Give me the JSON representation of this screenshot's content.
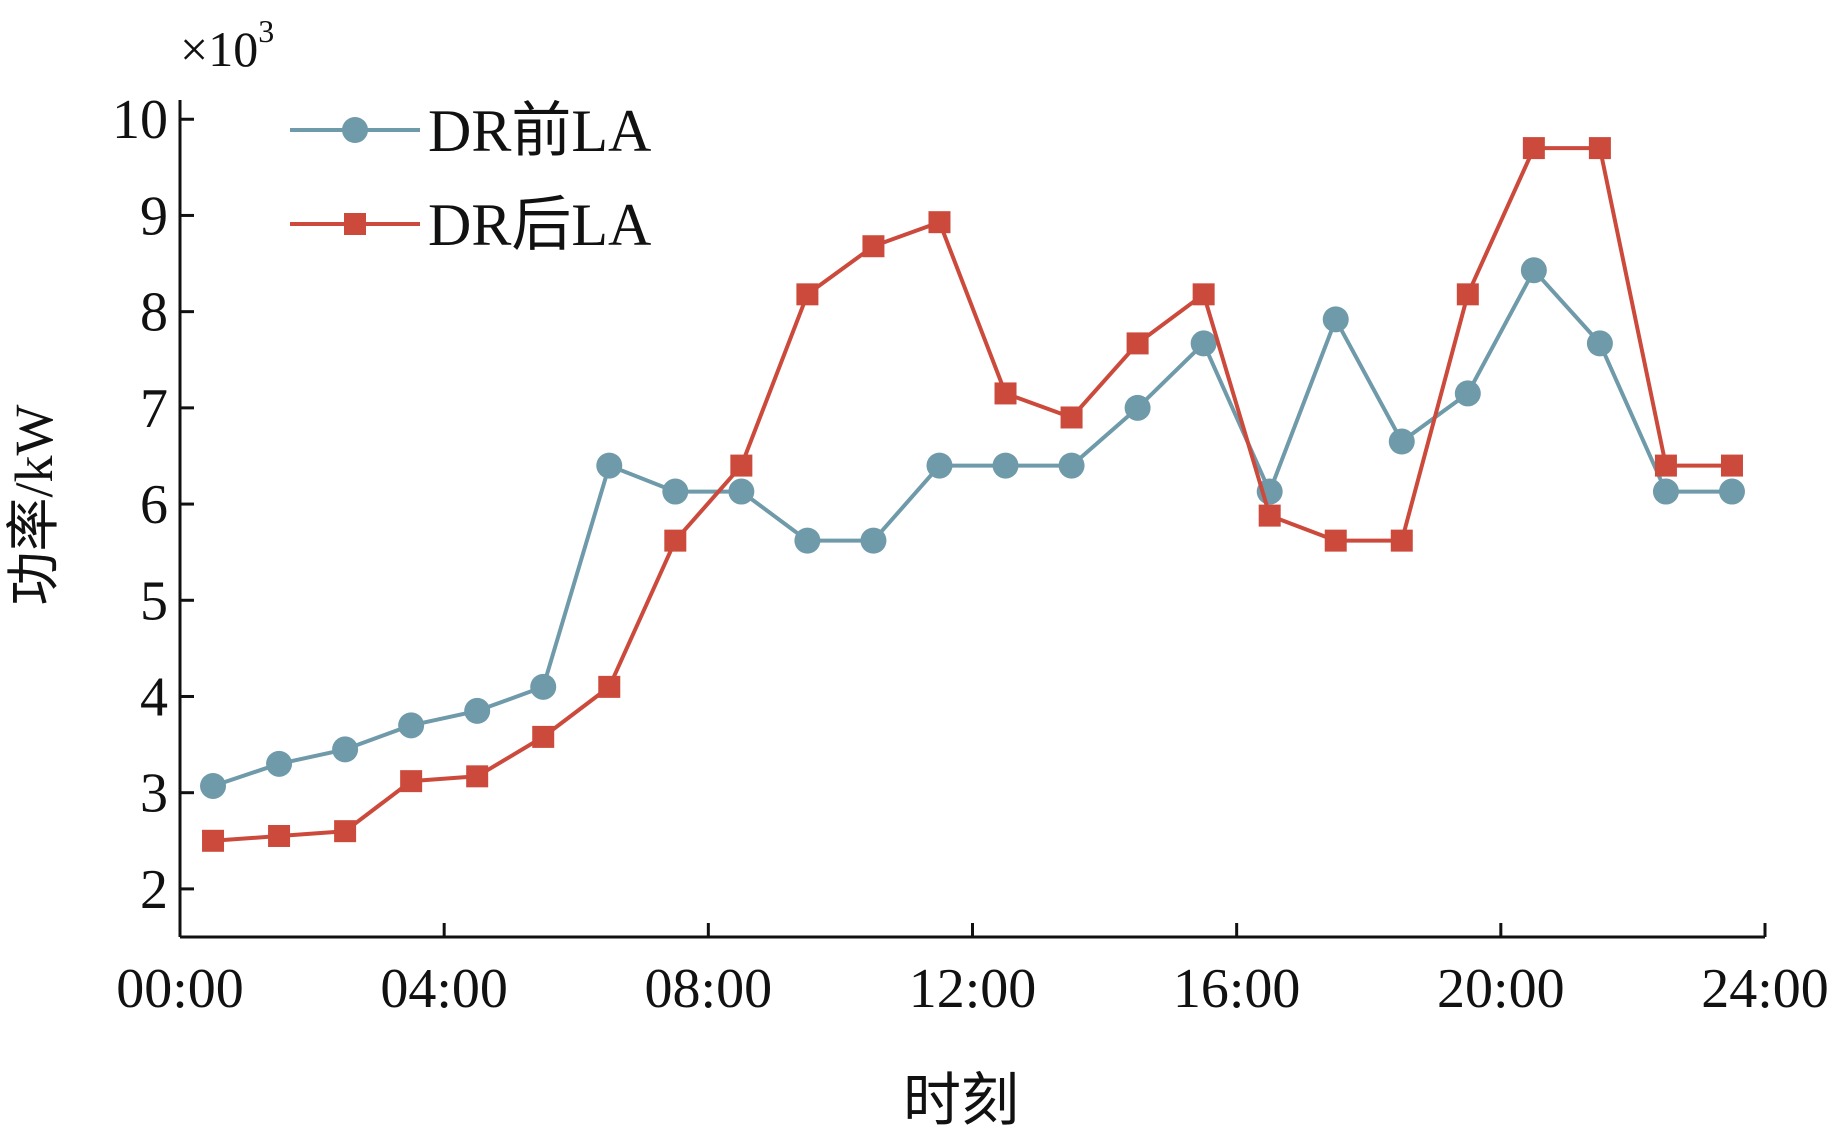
{
  "chart_data": {
    "type": "line",
    "title": "",
    "xlabel": "时刻",
    "ylabel": "功率/kW",
    "y_multiplier": "×10",
    "y_multiplier_exp": "3",
    "x_tick_labels": [
      "00:00",
      "04:00",
      "08:00",
      "12:00",
      "16:00",
      "20:00",
      "24:00"
    ],
    "y_tick_labels": [
      "2",
      "3",
      "4",
      "5",
      "6",
      "7",
      "8",
      "9",
      "10"
    ],
    "xlim_hours": [
      0,
      24
    ],
    "ylim": [
      1.5,
      10.2
    ],
    "x_hours": [
      0.5,
      1.5,
      2.5,
      3.5,
      4.5,
      5.5,
      6.5,
      7.5,
      8.5,
      9.5,
      10.5,
      11.5,
      12.5,
      13.5,
      14.5,
      15.5,
      16.5,
      17.5,
      18.5,
      19.5,
      20.5,
      21.5,
      22.5,
      23.5
    ],
    "grid": false,
    "legend_position": "top-left",
    "series": [
      {
        "name": "DR前LA",
        "color": "#6f9aaa",
        "marker": "circle",
        "values": [
          3.07,
          3.3,
          3.45,
          3.7,
          3.85,
          4.1,
          6.4,
          6.13,
          6.13,
          5.62,
          5.62,
          6.4,
          6.4,
          6.4,
          7.0,
          7.67,
          6.13,
          7.92,
          6.65,
          7.15,
          8.43,
          7.67,
          6.13,
          6.13
        ]
      },
      {
        "name": "DR后LA",
        "color": "#cc4a3c",
        "marker": "square",
        "values": [
          2.5,
          2.55,
          2.6,
          3.12,
          3.17,
          3.58,
          4.1,
          5.62,
          6.4,
          8.18,
          8.68,
          8.93,
          7.15,
          6.9,
          7.67,
          8.18,
          5.88,
          5.62,
          5.62,
          8.18,
          9.7,
          9.7,
          6.4,
          6.4
        ]
      }
    ]
  }
}
